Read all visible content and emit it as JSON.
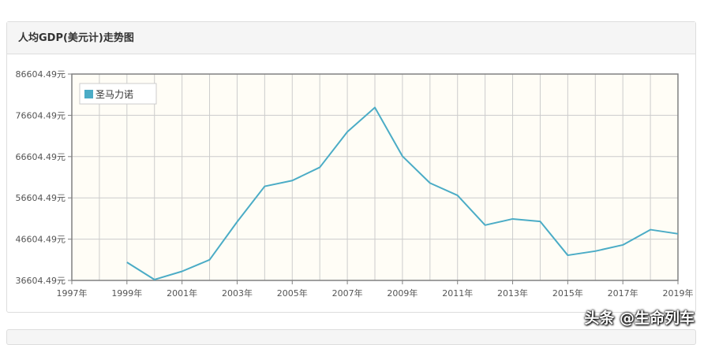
{
  "panel": {
    "title": "人均GDP(美元计)走势图"
  },
  "watermark": "头条 @生命列车",
  "colors": {
    "series": "#4bacc6",
    "plot_bg": "#fffdf6",
    "grid": "#cccccc",
    "axis": "#808080"
  },
  "chart_data": {
    "type": "line",
    "title": "人均GDP(美元计)走势图",
    "xlabel": "",
    "ylabel": "",
    "x_ticks": [
      "1997年",
      "1999年",
      "2001年",
      "2003年",
      "2005年",
      "2007年",
      "2009年",
      "2011年",
      "2013年",
      "2015年",
      "2017年",
      "2019年"
    ],
    "x_range": [
      1997,
      2019
    ],
    "y_ticks": [
      "36604.49元",
      "46604.49元",
      "56604.49元",
      "66604.49元",
      "76604.49元",
      "86604.49元"
    ],
    "ylim": [
      36604.49,
      86604.49
    ],
    "grid": true,
    "legend": "top-left",
    "series": [
      {
        "name": "圣马力诺",
        "x": [
          1999,
          2000,
          2001,
          2002,
          2003,
          2004,
          2005,
          2006,
          2007,
          2008,
          2009,
          2010,
          2011,
          2012,
          2013,
          2014,
          2015,
          2016,
          2017,
          2018,
          2019
        ],
        "values": [
          41000,
          36800,
          38800,
          41600,
          50800,
          59400,
          60800,
          64000,
          72600,
          78500,
          66700,
          60200,
          57200,
          50000,
          51500,
          50900,
          42700,
          43700,
          45200,
          48900,
          47900
        ]
      }
    ]
  }
}
